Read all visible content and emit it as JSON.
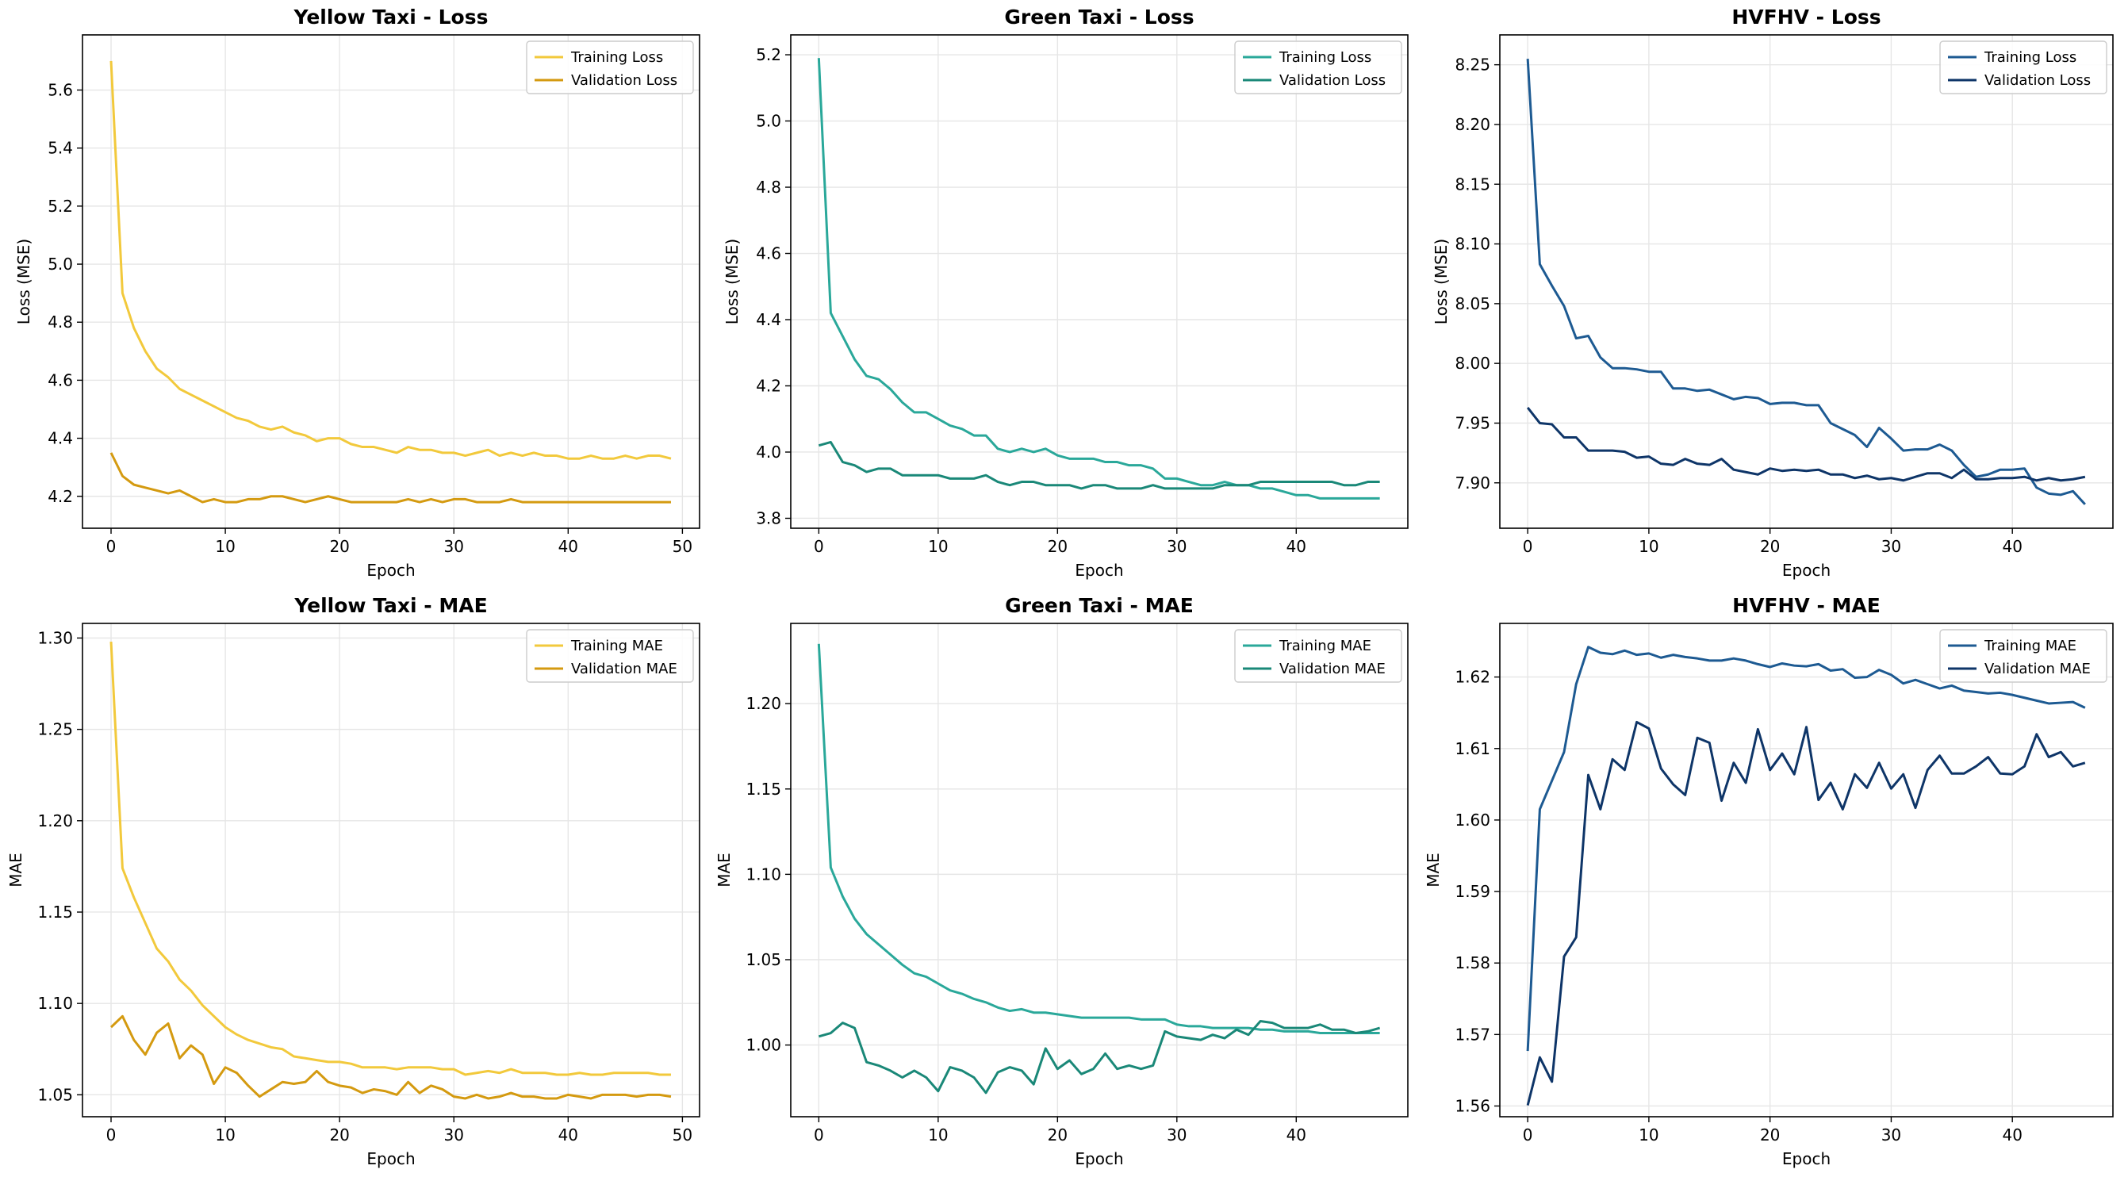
{
  "figure": {
    "background": "#ffffff"
  },
  "chart_data": [
    {
      "type": "line",
      "id": "yellow-loss",
      "title": "Yellow Taxi - Loss",
      "xlabel": "Epoch",
      "ylabel": "Loss (MSE)",
      "xlim": [
        -2.5,
        51.5
      ],
      "ylim": [
        4.09,
        5.79
      ],
      "xticks": [
        0,
        10,
        20,
        30,
        40,
        50
      ],
      "xtick_labels": [
        "0",
        "10",
        "20",
        "30",
        "40",
        "50"
      ],
      "yticks": [
        4.2,
        4.4,
        4.6,
        4.8,
        5.0,
        5.2,
        5.4,
        5.6
      ],
      "ytick_labels": [
        "4.2",
        "4.4",
        "4.6",
        "4.8",
        "5.0",
        "5.2",
        "5.4",
        "5.6"
      ],
      "legend": "top-right",
      "series": [
        {
          "name": "Training Loss",
          "color": "#f2c93c",
          "values": [
            5.7,
            4.9,
            4.78,
            4.7,
            4.64,
            4.61,
            4.57,
            4.55,
            4.53,
            4.51,
            4.49,
            4.47,
            4.46,
            4.44,
            4.43,
            4.44,
            4.42,
            4.41,
            4.39,
            4.4,
            4.4,
            4.38,
            4.37,
            4.37,
            4.36,
            4.35,
            4.37,
            4.36,
            4.36,
            4.35,
            4.35,
            4.34,
            4.35,
            4.36,
            4.34,
            4.35,
            4.34,
            4.35,
            4.34,
            4.34,
            4.33,
            4.33,
            4.34,
            4.33,
            4.33,
            4.34,
            4.33,
            4.34,
            4.34,
            4.33
          ]
        },
        {
          "name": "Validation Loss",
          "color": "#d49a10",
          "values": [
            4.35,
            4.27,
            4.24,
            4.23,
            4.22,
            4.21,
            4.22,
            4.2,
            4.18,
            4.19,
            4.18,
            4.18,
            4.19,
            4.19,
            4.2,
            4.2,
            4.19,
            4.18,
            4.19,
            4.2,
            4.19,
            4.18,
            4.18,
            4.18,
            4.18,
            4.18,
            4.19,
            4.18,
            4.19,
            4.18,
            4.19,
            4.19,
            4.18,
            4.18,
            4.18,
            4.19,
            4.18,
            4.18,
            4.18,
            4.18,
            4.18,
            4.18,
            4.18,
            4.18,
            4.18,
            4.18,
            4.18,
            4.18,
            4.18,
            4.18
          ]
        }
      ]
    },
    {
      "type": "line",
      "id": "green-loss",
      "title": "Green Taxi - Loss",
      "xlabel": "Epoch",
      "ylabel": "Loss (MSE)",
      "xlim": [
        -2.35,
        49.35
      ],
      "ylim": [
        3.77,
        5.26
      ],
      "xticks": [
        0,
        10,
        20,
        30,
        40
      ],
      "xtick_labels": [
        "0",
        "10",
        "20",
        "30",
        "40"
      ],
      "yticks": [
        3.8,
        4.0,
        4.2,
        4.4,
        4.6,
        4.8,
        5.0,
        5.2
      ],
      "ytick_labels": [
        "3.8",
        "4.0",
        "4.2",
        "4.4",
        "4.6",
        "4.8",
        "5.0",
        "5.2"
      ],
      "legend": "top-right",
      "series": [
        {
          "name": "Training Loss",
          "color": "#2aa89a",
          "values": [
            5.19,
            4.42,
            4.35,
            4.28,
            4.23,
            4.22,
            4.19,
            4.15,
            4.12,
            4.12,
            4.1,
            4.08,
            4.07,
            4.05,
            4.05,
            4.01,
            4.0,
            4.01,
            4.0,
            4.01,
            3.99,
            3.98,
            3.98,
            3.98,
            3.97,
            3.97,
            3.96,
            3.96,
            3.95,
            3.92,
            3.92,
            3.91,
            3.9,
            3.9,
            3.91,
            3.9,
            3.9,
            3.89,
            3.89,
            3.88,
            3.87,
            3.87,
            3.86,
            3.86,
            3.86,
            3.86,
            3.86,
            3.86
          ]
        },
        {
          "name": "Validation Loss",
          "color": "#1a8878",
          "values": [
            4.02,
            4.03,
            3.97,
            3.96,
            3.94,
            3.95,
            3.95,
            3.93,
            3.93,
            3.93,
            3.93,
            3.92,
            3.92,
            3.92,
            3.93,
            3.91,
            3.9,
            3.91,
            3.91,
            3.9,
            3.9,
            3.9,
            3.89,
            3.9,
            3.9,
            3.89,
            3.89,
            3.89,
            3.9,
            3.89,
            3.89,
            3.89,
            3.89,
            3.89,
            3.9,
            3.9,
            3.9,
            3.91,
            3.91,
            3.91,
            3.91,
            3.91,
            3.91,
            3.91,
            3.9,
            3.9,
            3.91,
            3.91
          ]
        }
      ]
    },
    {
      "type": "line",
      "id": "hvfhv-loss",
      "title": "HVFHV - Loss",
      "xlabel": "Epoch",
      "ylabel": "Loss (MSE)",
      "xlim": [
        -2.3,
        48.3
      ],
      "ylim": [
        7.862,
        8.275
      ],
      "xticks": [
        0,
        10,
        20,
        30,
        40
      ],
      "xtick_labels": [
        "0",
        "10",
        "20",
        "30",
        "40"
      ],
      "yticks": [
        7.9,
        7.95,
        8.0,
        8.05,
        8.1,
        8.15,
        8.2,
        8.25
      ],
      "ytick_labels": [
        "7.90",
        "7.95",
        "8.00",
        "8.05",
        "8.10",
        "8.15",
        "8.20",
        "8.25"
      ],
      "legend": "top-right",
      "series": [
        {
          "name": "Training Loss",
          "color": "#1d5a92",
          "values": [
            8.255,
            8.083,
            8.065,
            8.048,
            8.021,
            8.023,
            8.005,
            7.996,
            7.996,
            7.995,
            7.993,
            7.993,
            7.979,
            7.979,
            7.977,
            7.978,
            7.974,
            7.97,
            7.972,
            7.971,
            7.966,
            7.967,
            7.967,
            7.965,
            7.965,
            7.95,
            7.945,
            7.94,
            7.93,
            7.946,
            7.937,
            7.927,
            7.928,
            7.928,
            7.932,
            7.927,
            7.915,
            7.905,
            7.907,
            7.911,
            7.911,
            7.912,
            7.896,
            7.891,
            7.89,
            7.893,
            7.882
          ]
        },
        {
          "name": "Validation Loss",
          "color": "#0e3568",
          "values": [
            7.963,
            7.95,
            7.949,
            7.938,
            7.938,
            7.927,
            7.927,
            7.927,
            7.926,
            7.921,
            7.922,
            7.916,
            7.915,
            7.92,
            7.916,
            7.915,
            7.92,
            7.911,
            7.909,
            7.907,
            7.912,
            7.91,
            7.911,
            7.91,
            7.911,
            7.907,
            7.907,
            7.904,
            7.906,
            7.903,
            7.904,
            7.902,
            7.905,
            7.908,
            7.908,
            7.904,
            7.911,
            7.903,
            7.903,
            7.904,
            7.904,
            7.905,
            7.902,
            7.904,
            7.902,
            7.903,
            7.905
          ]
        }
      ]
    },
    {
      "type": "line",
      "id": "yellow-mae",
      "title": "Yellow Taxi - MAE",
      "xlabel": "Epoch",
      "ylabel": "MAE",
      "xlim": [
        -2.5,
        51.5
      ],
      "ylim": [
        1.038,
        1.308
      ],
      "xticks": [
        0,
        10,
        20,
        30,
        40,
        50
      ],
      "xtick_labels": [
        "0",
        "10",
        "20",
        "30",
        "40",
        "50"
      ],
      "yticks": [
        1.05,
        1.1,
        1.15,
        1.2,
        1.25,
        1.3
      ],
      "ytick_labels": [
        "1.05",
        "1.10",
        "1.15",
        "1.20",
        "1.25",
        "1.30"
      ],
      "legend": "top-right",
      "series": [
        {
          "name": "Training MAE",
          "color": "#f2c93c",
          "values": [
            1.298,
            1.174,
            1.158,
            1.144,
            1.13,
            1.123,
            1.113,
            1.107,
            1.099,
            1.093,
            1.087,
            1.083,
            1.08,
            1.078,
            1.076,
            1.075,
            1.071,
            1.07,
            1.069,
            1.068,
            1.068,
            1.067,
            1.065,
            1.065,
            1.065,
            1.064,
            1.065,
            1.065,
            1.065,
            1.064,
            1.064,
            1.061,
            1.062,
            1.063,
            1.062,
            1.064,
            1.062,
            1.062,
            1.062,
            1.061,
            1.061,
            1.062,
            1.061,
            1.061,
            1.062,
            1.062,
            1.062,
            1.062,
            1.061,
            1.061
          ]
        },
        {
          "name": "Validation MAE",
          "color": "#d49a10",
          "values": [
            1.087,
            1.093,
            1.08,
            1.072,
            1.084,
            1.089,
            1.07,
            1.077,
            1.072,
            1.056,
            1.065,
            1.062,
            1.055,
            1.049,
            1.053,
            1.057,
            1.056,
            1.057,
            1.063,
            1.057,
            1.055,
            1.054,
            1.051,
            1.053,
            1.052,
            1.05,
            1.057,
            1.051,
            1.055,
            1.053,
            1.049,
            1.048,
            1.05,
            1.048,
            1.049,
            1.051,
            1.049,
            1.049,
            1.048,
            1.048,
            1.05,
            1.049,
            1.048,
            1.05,
            1.05,
            1.05,
            1.049,
            1.05,
            1.05,
            1.049
          ]
        }
      ]
    },
    {
      "type": "line",
      "id": "green-mae",
      "title": "Green Taxi - MAE",
      "xlabel": "Epoch",
      "ylabel": "MAE",
      "xlim": [
        -2.35,
        49.35
      ],
      "ylim": [
        0.958,
        1.247
      ],
      "xticks": [
        0,
        10,
        20,
        30,
        40
      ],
      "xtick_labels": [
        "0",
        "10",
        "20",
        "30",
        "40"
      ],
      "yticks": [
        1.0,
        1.05,
        1.1,
        1.15,
        1.2
      ],
      "ytick_labels": [
        "1.00",
        "1.05",
        "1.10",
        "1.15",
        "1.20"
      ],
      "legend": "top-right",
      "series": [
        {
          "name": "Training MAE",
          "color": "#2aa89a",
          "values": [
            1.235,
            1.104,
            1.087,
            1.074,
            1.065,
            1.059,
            1.053,
            1.047,
            1.042,
            1.04,
            1.036,
            1.032,
            1.03,
            1.027,
            1.025,
            1.022,
            1.02,
            1.021,
            1.019,
            1.019,
            1.018,
            1.017,
            1.016,
            1.016,
            1.016,
            1.016,
            1.016,
            1.015,
            1.015,
            1.015,
            1.012,
            1.011,
            1.011,
            1.01,
            1.01,
            1.01,
            1.01,
            1.009,
            1.009,
            1.008,
            1.008,
            1.008,
            1.007,
            1.007,
            1.007,
            1.007,
            1.007,
            1.007
          ]
        },
        {
          "name": "Validation MAE",
          "color": "#1a8878",
          "values": [
            1.005,
            1.007,
            1.013,
            1.01,
            0.99,
            0.988,
            0.985,
            0.981,
            0.985,
            0.981,
            0.973,
            0.987,
            0.985,
            0.981,
            0.972,
            0.984,
            0.987,
            0.985,
            0.977,
            0.998,
            0.986,
            0.991,
            0.983,
            0.986,
            0.995,
            0.986,
            0.988,
            0.986,
            0.988,
            1.008,
            1.005,
            1.004,
            1.003,
            1.006,
            1.004,
            1.009,
            1.006,
            1.014,
            1.013,
            1.01,
            1.01,
            1.01,
            1.012,
            1.009,
            1.009,
            1.007,
            1.008,
            1.01
          ]
        }
      ]
    },
    {
      "type": "line",
      "id": "hvfhv-mae",
      "title": "HVFHV - MAE",
      "xlabel": "Epoch",
      "ylabel": "MAE",
      "xlim": [
        -2.3,
        48.3
      ],
      "ylim": [
        1.5585,
        1.6275
      ],
      "xticks": [
        0,
        10,
        20,
        30,
        40
      ],
      "xtick_labels": [
        "0",
        "10",
        "20",
        "30",
        "40"
      ],
      "yticks": [
        1.56,
        1.57,
        1.58,
        1.59,
        1.6,
        1.61,
        1.62
      ],
      "ytick_labels": [
        "1.56",
        "1.57",
        "1.58",
        "1.59",
        "1.60",
        "1.61",
        "1.62"
      ],
      "legend": "top-right",
      "series": [
        {
          "name": "Training MAE",
          "color": "#1d5a92",
          "values": [
            1.5677,
            1.6015,
            1.6055,
            1.6095,
            1.619,
            1.6242,
            1.6234,
            1.6232,
            1.6237,
            1.6231,
            1.6233,
            1.6227,
            1.6231,
            1.6228,
            1.6226,
            1.6223,
            1.6223,
            1.6226,
            1.6223,
            1.6218,
            1.6214,
            1.6219,
            1.6216,
            1.6215,
            1.6218,
            1.6209,
            1.6211,
            1.6199,
            1.62,
            1.621,
            1.6203,
            1.6191,
            1.6196,
            1.619,
            1.6184,
            1.6188,
            1.6181,
            1.6179,
            1.6177,
            1.6178,
            1.6175,
            1.6171,
            1.6167,
            1.6163,
            1.6164,
            1.6165,
            1.6157
          ]
        },
        {
          "name": "Validation MAE",
          "color": "#0e3568",
          "values": [
            1.5601,
            1.5668,
            1.5634,
            1.5809,
            1.5836,
            1.6063,
            1.6015,
            1.6085,
            1.607,
            1.6137,
            1.6128,
            1.6072,
            1.605,
            1.6035,
            1.6115,
            1.6108,
            1.6027,
            1.608,
            1.6052,
            1.6127,
            1.607,
            1.6093,
            1.6064,
            1.613,
            1.6028,
            1.6052,
            1.6015,
            1.6064,
            1.6045,
            1.608,
            1.6044,
            1.6064,
            1.6017,
            1.607,
            1.609,
            1.6065,
            1.6065,
            1.6075,
            1.6088,
            1.6065,
            1.6064,
            1.6075,
            1.612,
            1.6088,
            1.6095,
            1.6075,
            1.608
          ]
        }
      ]
    }
  ]
}
